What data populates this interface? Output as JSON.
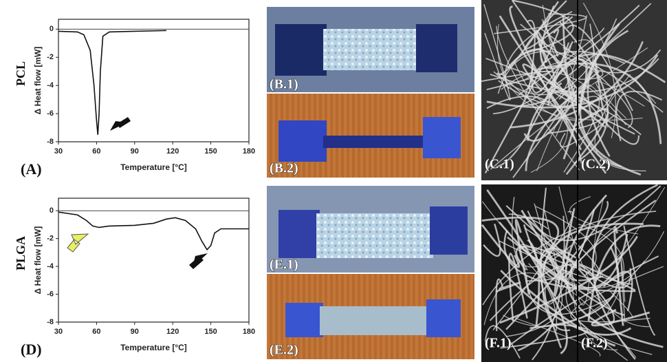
{
  "chart_data": [
    {
      "type": "line",
      "row_label": "PCL",
      "panel_label": "(A)",
      "x_label": "Temperature [°C]",
      "y_label": "Δ Heat flow [mW]",
      "x": [
        30,
        45,
        50,
        55,
        58,
        60,
        61,
        62,
        63,
        65,
        70,
        90,
        115
      ],
      "values": [
        -0.15,
        -0.2,
        -0.4,
        -1.5,
        -4,
        -6.5,
        -7.5,
        -6,
        -3,
        -0.5,
        -0.2,
        -0.15,
        -0.1
      ],
      "color": "#111111",
      "zero_line": true,
      "xlim": [
        30,
        180
      ],
      "xticks": [
        30,
        60,
        90,
        120,
        150,
        180
      ],
      "ylim": [
        -8,
        0.7
      ],
      "yticks": [
        0,
        -2,
        -4,
        -6,
        -8
      ]
    },
    {
      "type": "line",
      "row_label": "PLGA",
      "panel_label": "(D)",
      "x_label": "Temperature [°C]",
      "y_label": "Δ Heat flow [mW]",
      "x": [
        30,
        45,
        52,
        57,
        62,
        70,
        90,
        105,
        115,
        122,
        130,
        138,
        143,
        147,
        150,
        153,
        158,
        165,
        180
      ],
      "values": [
        -0.1,
        -0.3,
        -0.7,
        -1.1,
        -1.2,
        -1.1,
        -1.05,
        -0.9,
        -0.6,
        -0.5,
        -0.7,
        -1.3,
        -2.2,
        -2.8,
        -2.5,
        -1.6,
        -1.3,
        -1.3,
        -1.3
      ],
      "color": "#111111",
      "zero_line": true,
      "xlim": [
        30,
        180
      ],
      "xticks": [
        30,
        60,
        90,
        120,
        150,
        180
      ],
      "ylim": [
        -8,
        0.9
      ],
      "yticks": [
        0,
        -2,
        -4,
        -6,
        -8
      ]
    }
  ],
  "photos": [
    "(B.1)",
    "(B.2)",
    "(E.1)",
    "(E.2)"
  ],
  "micrographs": [
    "(C.1)",
    "(C.2)",
    "(F.1)",
    "(F.2)"
  ]
}
